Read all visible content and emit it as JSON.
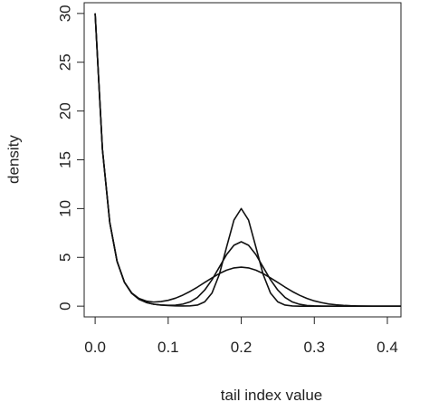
{
  "chart_data": {
    "type": "line",
    "x_label": "tail index value",
    "y_label": "density",
    "x": [
      0,
      0.01,
      0.02,
      0.03,
      0.04,
      0.05,
      0.06,
      0.07,
      0.08,
      0.09,
      0.1,
      0.11,
      0.12,
      0.13,
      0.14,
      0.15,
      0.16,
      0.17,
      0.18,
      0.19,
      0.2,
      0.21,
      0.22,
      0.23,
      0.24,
      0.25,
      0.26,
      0.27,
      0.28,
      0.29,
      0.3,
      0.31,
      0.32,
      0.33,
      0.34,
      0.35,
      0.36,
      0.37,
      0.38,
      0.39,
      0.4,
      0.41,
      0.42
    ],
    "series": [
      {
        "color": "#111111",
        "values": [
          30,
          16.06,
          8.6,
          4.6,
          2.46,
          1.32,
          0.71,
          0.38,
          0.2,
          0.11,
          0.06,
          0.03,
          0.02,
          0.03,
          0.11,
          0.44,
          1.35,
          3.25,
          6.07,
          8.82,
          10,
          8.82,
          6.07,
          3.25,
          1.35,
          0.44,
          0.11,
          0.02,
          0,
          0,
          0,
          0,
          0,
          0,
          0,
          0,
          0,
          0,
          0,
          0,
          0,
          0,
          0
        ]
      },
      {
        "color": "#111111",
        "values": [
          30,
          16.06,
          8.6,
          4.6,
          2.46,
          1.32,
          0.71,
          0.38,
          0.2,
          0.12,
          0.09,
          0.1,
          0.21,
          0.44,
          0.89,
          1.65,
          2.71,
          4.0,
          5.29,
          6.24,
          6.6,
          6.24,
          5.29,
          4.0,
          2.71,
          1.65,
          0.89,
          0.43,
          0.19,
          0.07,
          0.03,
          0.01,
          0,
          0,
          0,
          0,
          0,
          0,
          0,
          0,
          0,
          0,
          0
        ]
      },
      {
        "color": "#111111",
        "values": [
          30,
          16.06,
          8.6,
          4.61,
          2.48,
          1.36,
          0.79,
          0.52,
          0.42,
          0.47,
          0.6,
          0.82,
          1.13,
          1.51,
          1.95,
          2.43,
          2.9,
          3.34,
          3.69,
          3.92,
          4,
          3.92,
          3.69,
          3.34,
          2.9,
          2.43,
          1.95,
          1.5,
          1.11,
          0.79,
          0.54,
          0.36,
          0.22,
          0.14,
          0.08,
          0.04,
          0.02,
          0.01,
          0,
          0,
          0,
          0,
          0
        ]
      }
    ],
    "xlim": [
      -0.015,
      0.4186
    ],
    "ylim": [
      -1.1,
      31.1
    ],
    "xticks": [
      {
        "value": 0,
        "label": "0.0"
      },
      0.1,
      0.2,
      0.3,
      0.4
    ],
    "yticks": [
      0,
      5,
      10,
      15,
      20,
      25,
      30
    ]
  }
}
